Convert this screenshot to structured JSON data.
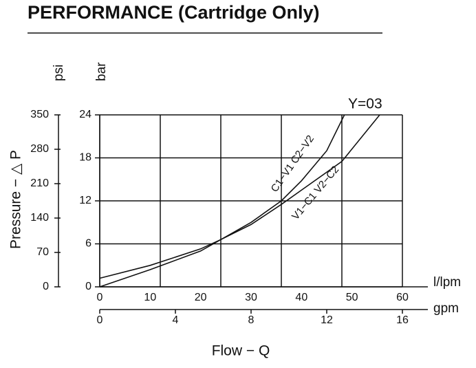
{
  "chart_data": {
    "type": "line",
    "title": "PERFORMANCE (Cartridge Only)",
    "annotation": "Y=03",
    "xlabel": "Flow − Q",
    "ylabel": "Pressure − △ P",
    "xunit": "l/lpm",
    "x2unit": "gpm",
    "yunit": "bar",
    "y2unit": "psi",
    "xlim": [
      0,
      60
    ],
    "xticks": [
      0,
      10,
      20,
      30,
      40,
      50,
      60
    ],
    "xgrid": [
      0,
      12,
      24,
      36,
      48,
      60
    ],
    "x2lim": [
      0,
      16
    ],
    "x2ticks": [
      0,
      4,
      8,
      12,
      16
    ],
    "ylim": [
      0,
      24
    ],
    "yticks": [
      0,
      6,
      12,
      18,
      24
    ],
    "y2lim": [
      0,
      350
    ],
    "y2ticks": [
      0,
      70,
      140,
      210,
      280,
      350
    ],
    "grid": true,
    "series": [
      {
        "name": "C1−V1  C2−V2",
        "color": "#111111",
        "x": [
          0,
          10,
          20,
          24,
          30,
          36,
          40,
          45,
          48.5
        ],
        "values": [
          1.2,
          3,
          5.3,
          6.6,
          9,
          12,
          14.8,
          19,
          24
        ]
      },
      {
        "name": "V1−C1  V2−C2",
        "color": "#111111",
        "x": [
          0,
          10,
          20,
          24,
          30,
          36,
          40,
          48,
          55.5
        ],
        "values": [
          0,
          2.4,
          5,
          6.6,
          8.7,
          11.5,
          13.5,
          17.5,
          24
        ]
      }
    ]
  }
}
